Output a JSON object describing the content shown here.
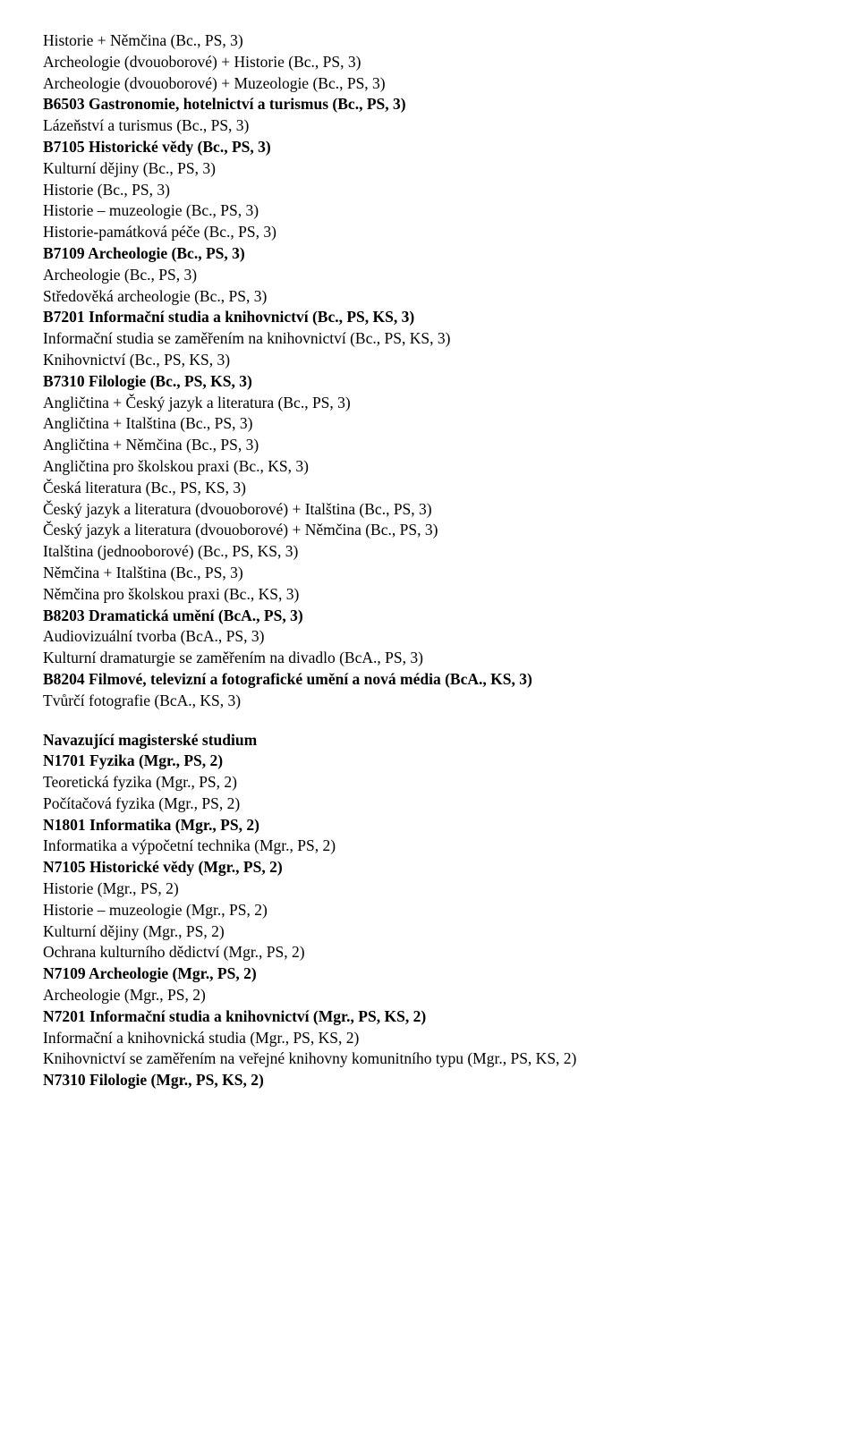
{
  "section1": [
    {
      "text": "Historie + Němčina (Bc., PS, 3)",
      "bold": false
    },
    {
      "text": "Archeologie (dvouoborové) + Historie (Bc., PS, 3)",
      "bold": false
    },
    {
      "text": "Archeologie (dvouoborové) + Muzeologie (Bc., PS, 3)",
      "bold": false
    },
    {
      "text": "B6503 Gastronomie, hotelnictví a turismus (Bc., PS, 3)",
      "bold": true
    },
    {
      "text": "Lázeňství a turismus (Bc., PS, 3)",
      "bold": false
    },
    {
      "text": "B7105 Historické vědy (Bc., PS, 3)",
      "bold": true
    },
    {
      "text": "Kulturní dějiny (Bc., PS, 3)",
      "bold": false
    },
    {
      "text": "Historie (Bc., PS, 3)",
      "bold": false
    },
    {
      "text": "Historie – muzeologie (Bc., PS, 3)",
      "bold": false
    },
    {
      "text": "Historie-památková péče (Bc., PS, 3)",
      "bold": false
    },
    {
      "text": "B7109 Archeologie (Bc., PS, 3)",
      "bold": true
    },
    {
      "text": "Archeologie (Bc., PS, 3)",
      "bold": false
    },
    {
      "text": "Středověká archeologie (Bc., PS, 3)",
      "bold": false
    },
    {
      "text": "B7201 Informační studia a knihovnictví (Bc., PS, KS, 3)",
      "bold": true
    },
    {
      "text": "Informační studia se zaměřením na knihovnictví (Bc., PS, KS, 3)",
      "bold": false
    },
    {
      "text": "Knihovnictví (Bc., PS, KS, 3)",
      "bold": false
    },
    {
      "text": "B7310 Filologie (Bc., PS, KS, 3)",
      "bold": true
    },
    {
      "text": "Angličtina + Český jazyk a literatura (Bc., PS, 3)",
      "bold": false
    },
    {
      "text": "Angličtina + Italština (Bc., PS, 3)",
      "bold": false
    },
    {
      "text": "Angličtina + Němčina (Bc., PS, 3)",
      "bold": false
    },
    {
      "text": "Angličtina pro školskou praxi (Bc., KS, 3)",
      "bold": false
    },
    {
      "text": "Česká literatura (Bc., PS, KS, 3)",
      "bold": false
    },
    {
      "text": "Český jazyk a literatura (dvouoborové) + Italština (Bc., PS, 3)",
      "bold": false
    },
    {
      "text": "Český jazyk a literatura (dvouoborové) + Němčina (Bc., PS, 3)",
      "bold": false
    },
    {
      "text": "Italština (jednooborové) (Bc., PS, KS, 3)",
      "bold": false
    },
    {
      "text": "Němčina + Italština (Bc., PS, 3)",
      "bold": false
    },
    {
      "text": "Němčina pro školskou praxi (Bc., KS, 3)",
      "bold": false
    },
    {
      "text": "B8203 Dramatická umění (BcA., PS, 3)",
      "bold": true
    },
    {
      "text": "Audiovizuální tvorba (BcA., PS, 3)",
      "bold": false
    },
    {
      "text": "Kulturní dramaturgie se zaměřením na divadlo (BcA., PS, 3)",
      "bold": false
    },
    {
      "text": "B8204 Filmové, televizní a fotografické umění a nová média (BcA., KS, 3)",
      "bold": true
    },
    {
      "text": "Tvůrčí fotografie (BcA., KS, 3)",
      "bold": false
    }
  ],
  "section2": [
    {
      "text": "Navazující magisterské studium",
      "bold": true
    },
    {
      "text": "N1701 Fyzika (Mgr., PS, 2)",
      "bold": true
    },
    {
      "text": "Teoretická fyzika (Mgr., PS, 2)",
      "bold": false
    },
    {
      "text": "Počítačová fyzika (Mgr., PS, 2)",
      "bold": false
    },
    {
      "text": "N1801 Informatika (Mgr., PS, 2)",
      "bold": true
    },
    {
      "text": "Informatika a výpočetní technika (Mgr., PS, 2)",
      "bold": false
    },
    {
      "text": "N7105 Historické vědy (Mgr., PS, 2)",
      "bold": true
    },
    {
      "text": "Historie (Mgr., PS, 2)",
      "bold": false
    },
    {
      "text": "Historie – muzeologie (Mgr., PS, 2)",
      "bold": false
    },
    {
      "text": "Kulturní dějiny (Mgr., PS, 2)",
      "bold": false
    },
    {
      "text": "Ochrana kulturního dědictví (Mgr., PS, 2)",
      "bold": false
    },
    {
      "text": "N7109 Archeologie (Mgr., PS, 2)",
      "bold": true
    },
    {
      "text": "Archeologie (Mgr., PS, 2)",
      "bold": false
    },
    {
      "text": "N7201 Informační studia a knihovnictví (Mgr., PS, KS, 2)",
      "bold": true
    },
    {
      "text": "Informační a knihovnická studia (Mgr., PS, KS, 2)",
      "bold": false
    },
    {
      "text": "Knihovnictví se zaměřením na veřejné knihovny komunitního typu (Mgr., PS, KS, 2)",
      "bold": false
    },
    {
      "text": "N7310 Filologie (Mgr., PS, KS, 2)",
      "bold": true
    }
  ]
}
